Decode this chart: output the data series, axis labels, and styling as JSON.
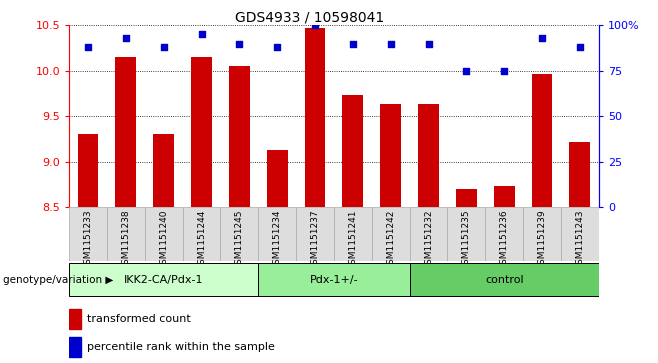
{
  "title": "GDS4933 / 10598041",
  "samples": [
    "GSM1151233",
    "GSM1151238",
    "GSM1151240",
    "GSM1151244",
    "GSM1151245",
    "GSM1151234",
    "GSM1151237",
    "GSM1151241",
    "GSM1151242",
    "GSM1151232",
    "GSM1151235",
    "GSM1151236",
    "GSM1151239",
    "GSM1151243"
  ],
  "bar_values": [
    9.3,
    10.15,
    9.3,
    10.15,
    10.05,
    9.13,
    10.47,
    9.73,
    9.63,
    9.63,
    8.7,
    8.73,
    9.97,
    9.22
  ],
  "dot_values": [
    88,
    93,
    88,
    95,
    90,
    88,
    100,
    90,
    90,
    90,
    75,
    75,
    93,
    88
  ],
  "groups": [
    {
      "label": "IKK2-CA/Pdx-1",
      "start": 0,
      "end": 5
    },
    {
      "label": "Pdx-1+/-",
      "start": 5,
      "end": 9
    },
    {
      "label": "control",
      "start": 9,
      "end": 14
    }
  ],
  "ylim_left": [
    8.5,
    10.5
  ],
  "ylim_right": [
    0,
    100
  ],
  "bar_color": "#cc0000",
  "dot_color": "#0000cc",
  "background_color": "#ffffff",
  "tick_labels_left": [
    8.5,
    9.0,
    9.5,
    10.0,
    10.5
  ],
  "tick_labels_right": [
    0,
    25,
    50,
    75,
    100
  ],
  "legend_red": "transformed count",
  "legend_blue": "percentile rank within the sample",
  "genotype_label": "genotype/variation",
  "group_colors": [
    "#ccffcc",
    "#99ee99",
    "#66cc66"
  ]
}
